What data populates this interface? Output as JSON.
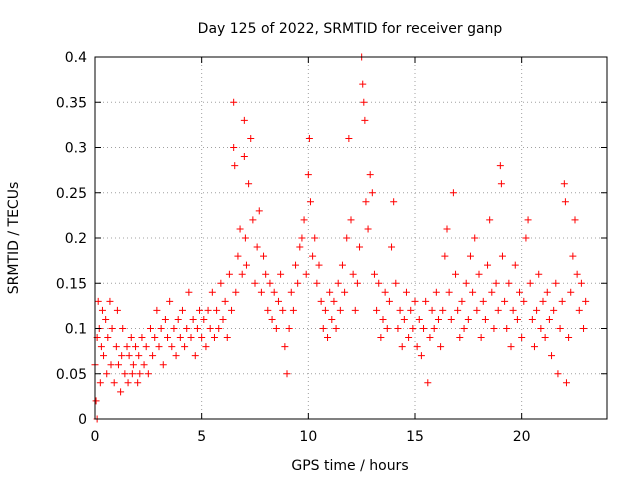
{
  "chart_data": {
    "type": "scatter",
    "title": "Day 125 of 2022, SRMTID for receiver ganp",
    "xlabel": "GPS time / hours",
    "ylabel": "SRMTID / TECUs",
    "xlim": [
      0,
      24
    ],
    "ylim": [
      0,
      0.4
    ],
    "xticks": [
      0,
      5,
      10,
      15,
      20
    ],
    "yticks": [
      0,
      0.05,
      0.1,
      0.15,
      0.2,
      0.25,
      0.3,
      0.35,
      0.4
    ],
    "xtick_labels": [
      "0",
      "5",
      "10",
      "15",
      "20"
    ],
    "ytick_labels": [
      "0",
      "0.05",
      "0.1",
      "0.15",
      "0.2",
      "0.25",
      "0.3",
      "0.35",
      "0.4"
    ],
    "grid": true,
    "marker": "+",
    "color": "#ff0000",
    "series": [
      {
        "name": "SRMTID",
        "points": [
          [
            0.0,
            0.06
          ],
          [
            0.05,
            0.02
          ],
          [
            0.1,
            0.0
          ],
          [
            0.1,
            0.09
          ],
          [
            0.15,
            0.13
          ],
          [
            0.2,
            0.1
          ],
          [
            0.25,
            0.04
          ],
          [
            0.3,
            0.08
          ],
          [
            0.35,
            0.12
          ],
          [
            0.4,
            0.07
          ],
          [
            0.5,
            0.11
          ],
          [
            0.55,
            0.05
          ],
          [
            0.6,
            0.09
          ],
          [
            0.7,
            0.13
          ],
          [
            0.75,
            0.06
          ],
          [
            0.8,
            0.1
          ],
          [
            0.9,
            0.04
          ],
          [
            1.0,
            0.08
          ],
          [
            1.05,
            0.12
          ],
          [
            1.1,
            0.06
          ],
          [
            1.2,
            0.03
          ],
          [
            1.25,
            0.07
          ],
          [
            1.3,
            0.1
          ],
          [
            1.4,
            0.05
          ],
          [
            1.5,
            0.08
          ],
          [
            1.55,
            0.04
          ],
          [
            1.6,
            0.07
          ],
          [
            1.7,
            0.09
          ],
          [
            1.75,
            0.05
          ],
          [
            1.8,
            0.06
          ],
          [
            1.9,
            0.08
          ],
          [
            2.0,
            0.04
          ],
          [
            2.05,
            0.07
          ],
          [
            2.1,
            0.05
          ],
          [
            2.2,
            0.09
          ],
          [
            2.3,
            0.06
          ],
          [
            2.4,
            0.08
          ],
          [
            2.5,
            0.05
          ],
          [
            2.6,
            0.1
          ],
          [
            2.7,
            0.07
          ],
          [
            2.8,
            0.09
          ],
          [
            2.9,
            0.12
          ],
          [
            3.0,
            0.08
          ],
          [
            3.1,
            0.1
          ],
          [
            3.2,
            0.06
          ],
          [
            3.3,
            0.11
          ],
          [
            3.4,
            0.09
          ],
          [
            3.5,
            0.13
          ],
          [
            3.6,
            0.08
          ],
          [
            3.7,
            0.1
          ],
          [
            3.8,
            0.07
          ],
          [
            3.9,
            0.11
          ],
          [
            4.0,
            0.09
          ],
          [
            4.1,
            0.12
          ],
          [
            4.2,
            0.08
          ],
          [
            4.3,
            0.1
          ],
          [
            4.4,
            0.14
          ],
          [
            4.5,
            0.09
          ],
          [
            4.6,
            0.11
          ],
          [
            4.7,
            0.07
          ],
          [
            4.8,
            0.1
          ],
          [
            4.9,
            0.12
          ],
          [
            5.0,
            0.09
          ],
          [
            5.1,
            0.11
          ],
          [
            5.2,
            0.08
          ],
          [
            5.3,
            0.12
          ],
          [
            5.4,
            0.1
          ],
          [
            5.5,
            0.14
          ],
          [
            5.6,
            0.09
          ],
          [
            5.7,
            0.12
          ],
          [
            5.8,
            0.1
          ],
          [
            5.9,
            0.15
          ],
          [
            6.0,
            0.11
          ],
          [
            6.1,
            0.13
          ],
          [
            6.2,
            0.09
          ],
          [
            6.3,
            0.16
          ],
          [
            6.4,
            0.12
          ],
          [
            6.5,
            0.35
          ],
          [
            6.5,
            0.3
          ],
          [
            6.55,
            0.28
          ],
          [
            6.6,
            0.14
          ],
          [
            6.7,
            0.18
          ],
          [
            6.8,
            0.21
          ],
          [
            6.9,
            0.16
          ],
          [
            7.0,
            0.33
          ],
          [
            7.0,
            0.29
          ],
          [
            7.05,
            0.2
          ],
          [
            7.1,
            0.17
          ],
          [
            7.2,
            0.26
          ],
          [
            7.3,
            0.31
          ],
          [
            7.4,
            0.22
          ],
          [
            7.5,
            0.15
          ],
          [
            7.6,
            0.19
          ],
          [
            7.7,
            0.23
          ],
          [
            7.8,
            0.14
          ],
          [
            7.9,
            0.18
          ],
          [
            8.0,
            0.16
          ],
          [
            8.1,
            0.12
          ],
          [
            8.2,
            0.15
          ],
          [
            8.3,
            0.11
          ],
          [
            8.4,
            0.14
          ],
          [
            8.5,
            0.1
          ],
          [
            8.6,
            0.13
          ],
          [
            8.7,
            0.16
          ],
          [
            8.8,
            0.12
          ],
          [
            8.9,
            0.08
          ],
          [
            9.0,
            0.05
          ],
          [
            9.1,
            0.1
          ],
          [
            9.2,
            0.14
          ],
          [
            9.3,
            0.12
          ],
          [
            9.4,
            0.17
          ],
          [
            9.5,
            0.15
          ],
          [
            9.6,
            0.19
          ],
          [
            9.7,
            0.2
          ],
          [
            9.8,
            0.22
          ],
          [
            9.9,
            0.16
          ],
          [
            10.0,
            0.27
          ],
          [
            10.05,
            0.31
          ],
          [
            10.1,
            0.24
          ],
          [
            10.2,
            0.18
          ],
          [
            10.3,
            0.2
          ],
          [
            10.4,
            0.15
          ],
          [
            10.5,
            0.17
          ],
          [
            10.6,
            0.13
          ],
          [
            10.7,
            0.1
          ],
          [
            10.8,
            0.12
          ],
          [
            10.9,
            0.09
          ],
          [
            11.0,
            0.14
          ],
          [
            11.1,
            0.11
          ],
          [
            11.2,
            0.13
          ],
          [
            11.3,
            0.1
          ],
          [
            11.4,
            0.15
          ],
          [
            11.5,
            0.12
          ],
          [
            11.6,
            0.17
          ],
          [
            11.7,
            0.14
          ],
          [
            11.8,
            0.2
          ],
          [
            11.9,
            0.31
          ],
          [
            12.0,
            0.22
          ],
          [
            12.1,
            0.16
          ],
          [
            12.2,
            0.12
          ],
          [
            12.3,
            0.15
          ],
          [
            12.4,
            0.19
          ],
          [
            12.5,
            0.4
          ],
          [
            12.55,
            0.37
          ],
          [
            12.6,
            0.35
          ],
          [
            12.65,
            0.33
          ],
          [
            12.7,
            0.24
          ],
          [
            12.8,
            0.21
          ],
          [
            12.9,
            0.27
          ],
          [
            13.0,
            0.25
          ],
          [
            13.1,
            0.16
          ],
          [
            13.2,
            0.12
          ],
          [
            13.3,
            0.15
          ],
          [
            13.4,
            0.09
          ],
          [
            13.5,
            0.11
          ],
          [
            13.6,
            0.14
          ],
          [
            13.7,
            0.1
          ],
          [
            13.8,
            0.13
          ],
          [
            13.9,
            0.19
          ],
          [
            14.0,
            0.24
          ],
          [
            14.1,
            0.15
          ],
          [
            14.2,
            0.1
          ],
          [
            14.3,
            0.12
          ],
          [
            14.4,
            0.08
          ],
          [
            14.5,
            0.11
          ],
          [
            14.6,
            0.14
          ],
          [
            14.7,
            0.09
          ],
          [
            14.8,
            0.12
          ],
          [
            14.9,
            0.1
          ],
          [
            15.0,
            0.13
          ],
          [
            15.1,
            0.08
          ],
          [
            15.2,
            0.11
          ],
          [
            15.3,
            0.07
          ],
          [
            15.4,
            0.1
          ],
          [
            15.5,
            0.13
          ],
          [
            15.6,
            0.04
          ],
          [
            15.7,
            0.09
          ],
          [
            15.8,
            0.12
          ],
          [
            15.9,
            0.1
          ],
          [
            16.0,
            0.14
          ],
          [
            16.1,
            0.11
          ],
          [
            16.2,
            0.08
          ],
          [
            16.3,
            0.12
          ],
          [
            16.4,
            0.18
          ],
          [
            16.5,
            0.21
          ],
          [
            16.6,
            0.14
          ],
          [
            16.7,
            0.11
          ],
          [
            16.8,
            0.25
          ],
          [
            16.9,
            0.16
          ],
          [
            17.0,
            0.12
          ],
          [
            17.1,
            0.09
          ],
          [
            17.2,
            0.13
          ],
          [
            17.3,
            0.1
          ],
          [
            17.4,
            0.15
          ],
          [
            17.5,
            0.11
          ],
          [
            17.6,
            0.18
          ],
          [
            17.7,
            0.14
          ],
          [
            17.8,
            0.2
          ],
          [
            17.9,
            0.12
          ],
          [
            18.0,
            0.16
          ],
          [
            18.1,
            0.09
          ],
          [
            18.2,
            0.13
          ],
          [
            18.3,
            0.11
          ],
          [
            18.4,
            0.17
          ],
          [
            18.5,
            0.22
          ],
          [
            18.6,
            0.14
          ],
          [
            18.7,
            0.1
          ],
          [
            18.8,
            0.15
          ],
          [
            18.9,
            0.12
          ],
          [
            19.0,
            0.28
          ],
          [
            19.05,
            0.26
          ],
          [
            19.1,
            0.18
          ],
          [
            19.2,
            0.13
          ],
          [
            19.3,
            0.1
          ],
          [
            19.4,
            0.15
          ],
          [
            19.5,
            0.08
          ],
          [
            19.6,
            0.12
          ],
          [
            19.7,
            0.17
          ],
          [
            19.8,
            0.11
          ],
          [
            19.9,
            0.14
          ],
          [
            20.0,
            0.09
          ],
          [
            20.1,
            0.13
          ],
          [
            20.2,
            0.2
          ],
          [
            20.3,
            0.22
          ],
          [
            20.4,
            0.15
          ],
          [
            20.5,
            0.11
          ],
          [
            20.6,
            0.08
          ],
          [
            20.7,
            0.12
          ],
          [
            20.8,
            0.16
          ],
          [
            20.9,
            0.1
          ],
          [
            21.0,
            0.13
          ],
          [
            21.1,
            0.09
          ],
          [
            21.2,
            0.14
          ],
          [
            21.3,
            0.11
          ],
          [
            21.4,
            0.07
          ],
          [
            21.5,
            0.12
          ],
          [
            21.6,
            0.15
          ],
          [
            21.7,
            0.05
          ],
          [
            21.8,
            0.1
          ],
          [
            21.9,
            0.13
          ],
          [
            22.0,
            0.26
          ],
          [
            22.05,
            0.24
          ],
          [
            22.1,
            0.04
          ],
          [
            22.2,
            0.09
          ],
          [
            22.3,
            0.14
          ],
          [
            22.4,
            0.18
          ],
          [
            22.5,
            0.22
          ],
          [
            22.6,
            0.16
          ],
          [
            22.7,
            0.12
          ],
          [
            22.8,
            0.15
          ],
          [
            22.9,
            0.1
          ],
          [
            23.0,
            0.13
          ]
        ]
      }
    ]
  }
}
